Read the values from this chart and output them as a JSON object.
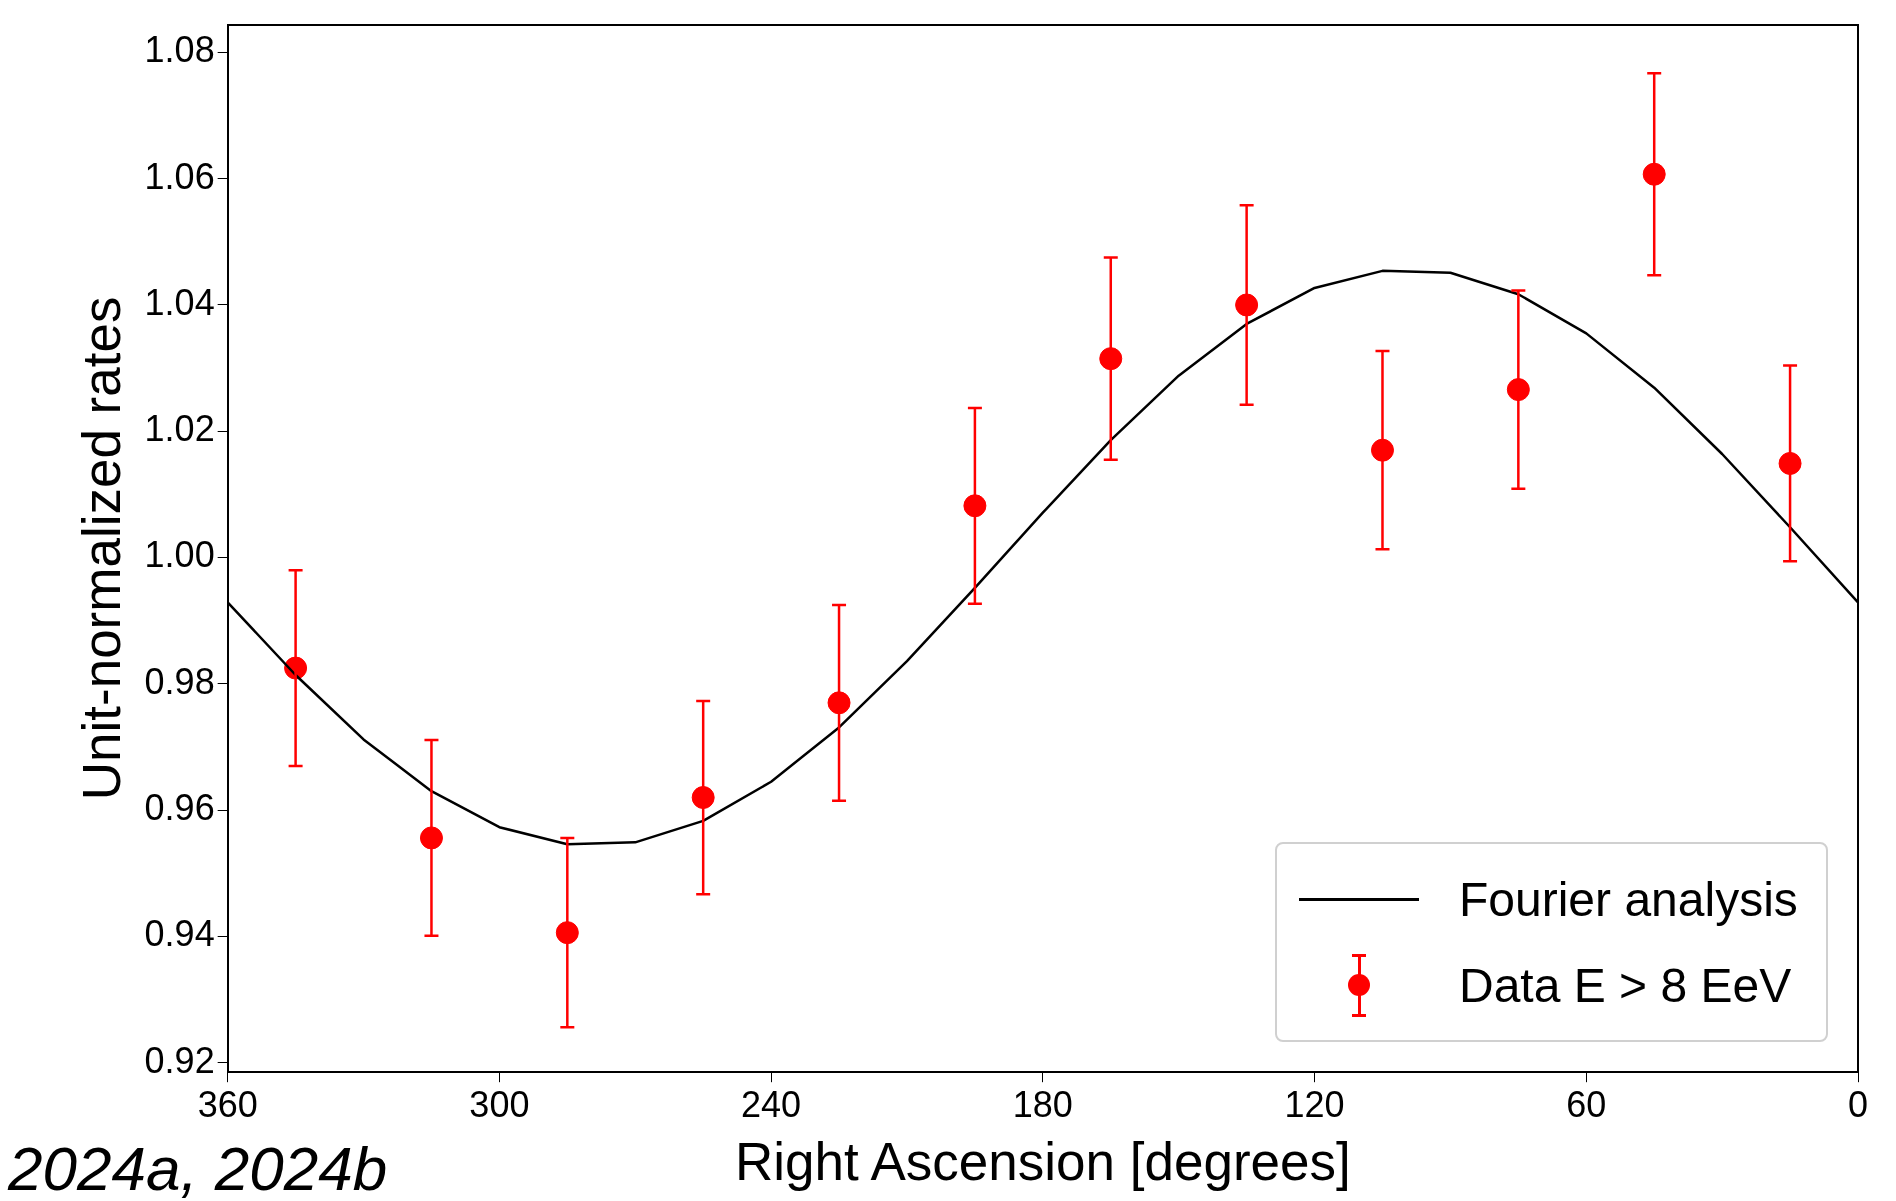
{
  "chart_data": {
    "type": "scatter",
    "xlabel": "Right Ascension [degrees]",
    "ylabel": "Unit-normalized rates",
    "xlim": [
      360,
      0
    ],
    "xticks": [
      360,
      300,
      240,
      180,
      120,
      60,
      0
    ],
    "ylim": [
      0.9185,
      1.0844
    ],
    "yticks": [
      {
        "value": 0.92,
        "label": "0.92"
      },
      {
        "value": 0.94,
        "label": "0.94"
      },
      {
        "value": 0.96,
        "label": "0.96"
      },
      {
        "value": 0.98,
        "label": "0.98"
      },
      {
        "value": 1.0,
        "label": "1.00"
      },
      {
        "value": 1.02,
        "label": "1.02"
      },
      {
        "value": 1.04,
        "label": "1.04"
      },
      {
        "value": 1.06,
        "label": "1.06"
      },
      {
        "value": 1.08,
        "label": "1.08"
      }
    ],
    "series": [
      {
        "name": "Fourier analysis",
        "type": "line",
        "color": "#000000",
        "marker": "none",
        "x": [
          0,
          15,
          30,
          45,
          60,
          75,
          90,
          105,
          120,
          135,
          150,
          165,
          180,
          195,
          210,
          225,
          240,
          255,
          270,
          285,
          300,
          315,
          330,
          345,
          360
        ],
        "values": [
          0.9929,
          1.0048,
          1.0164,
          1.0269,
          1.0355,
          1.0417,
          1.0451,
          1.0454,
          1.0427,
          1.037,
          1.0288,
          1.0186,
          1.0071,
          0.9952,
          0.9836,
          0.9731,
          0.9645,
          0.9583,
          0.9549,
          0.9546,
          0.9573,
          0.963,
          0.9712,
          0.9814,
          0.9929
        ]
      },
      {
        "name": "Data E > 8 EeV",
        "type": "scatter",
        "color": "#ff0000",
        "marker": "circle",
        "x": [
          345,
          315,
          285,
          255,
          225,
          195,
          165,
          135,
          105,
          75,
          45,
          15
        ],
        "values": [
          0.9825,
          0.9556,
          0.9406,
          0.962,
          0.977,
          1.0082,
          1.0315,
          1.04,
          1.017,
          1.0266,
          1.0607,
          1.0149
        ],
        "errors": [
          0.0155,
          0.0155,
          0.015,
          0.0153,
          0.0155,
          0.0155,
          0.016,
          0.0158,
          0.0157,
          0.0157,
          0.016,
          0.0155
        ]
      }
    ],
    "legend": "bottom right",
    "grid": false,
    "annotations": [
      "2024a, 2024b"
    ]
  }
}
